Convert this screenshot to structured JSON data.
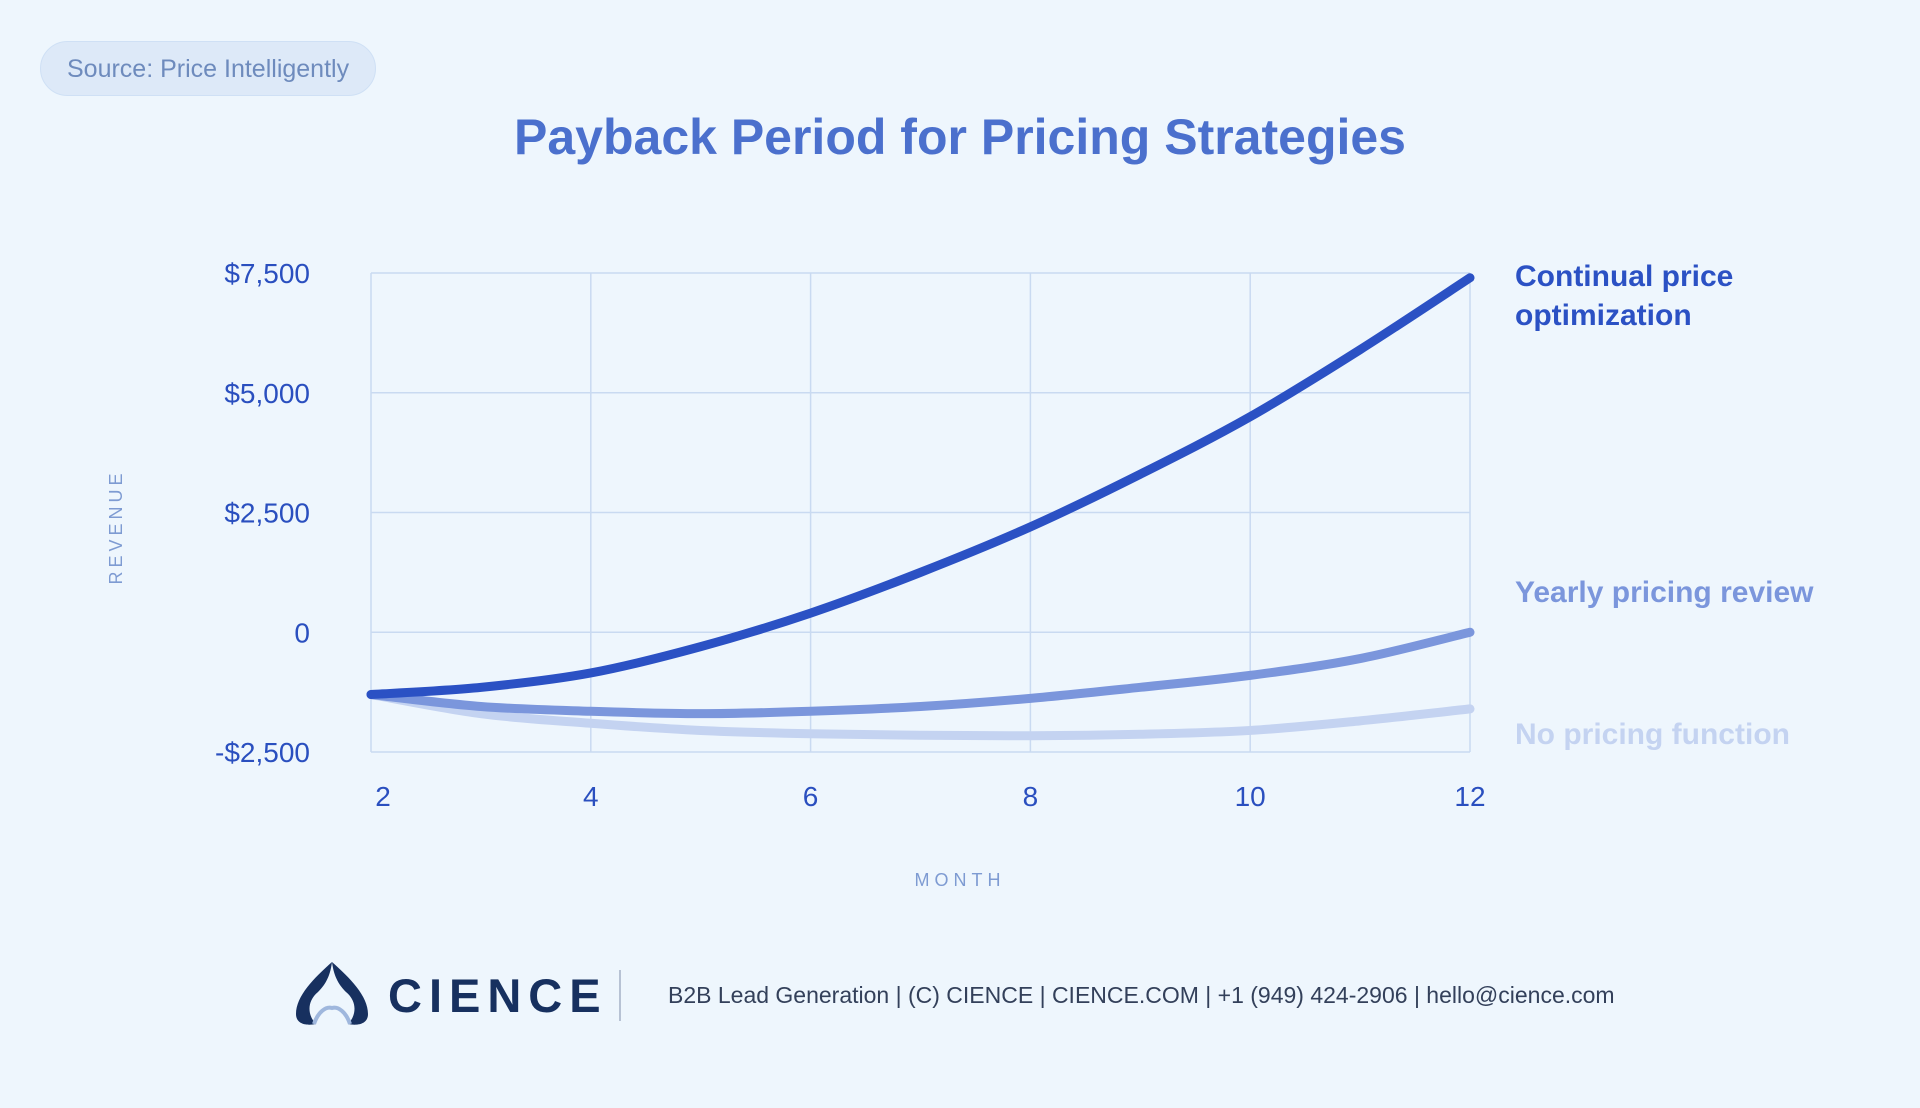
{
  "source_label": "Source: Price Intelligently",
  "footer": {
    "brand": "CIENCE",
    "contact": "B2B Lead Generation | (C) CIENCE | CIENCE.COM | +1 (949) 424-2906 | hello@cience.com",
    "logo_icon": "cience-flame-icon"
  },
  "colors": {
    "background": "#eef6fd",
    "title": "#4b70cd",
    "grid": "#c9daf1",
    "tick": "#2a4fbf",
    "axis_label": "#7e9bd2"
  },
  "chart_data": {
    "type": "line",
    "title": "Payback Period for Pricing Strategies",
    "xlabel": "MONTH",
    "ylabel": "REVENUE",
    "xlim": [
      2,
      12
    ],
    "ylim": [
      -2500,
      7500
    ],
    "x_ticks": [
      2,
      4,
      6,
      8,
      10,
      12
    ],
    "x_tick_labels": [
      "2",
      "4",
      "6",
      "8",
      "10",
      "12"
    ],
    "y_ticks": [
      -2500,
      0,
      2500,
      5000,
      7500
    ],
    "y_tick_labels": [
      "-$2,500",
      "0",
      "$2,500",
      "$5,000",
      "$7,500"
    ],
    "grid": true,
    "legend": "end-of-line labels at right",
    "x": [
      2,
      3,
      4,
      5,
      6,
      7,
      8,
      9,
      10,
      11,
      12
    ],
    "series": [
      {
        "name": "Continual price optimization",
        "color": "#2b51c4",
        "values": [
          -1300,
          -1150,
          -850,
          -300,
          400,
          1250,
          2200,
          3300,
          4500,
          5900,
          7400
        ]
      },
      {
        "name": "Yearly pricing review",
        "color": "#7b96dc",
        "values": [
          -1300,
          -1550,
          -1650,
          -1700,
          -1650,
          -1550,
          -1380,
          -1150,
          -900,
          -550,
          0
        ]
      },
      {
        "name": "No pricing function",
        "color": "#c4d3f1",
        "values": [
          -1300,
          -1700,
          -1900,
          -2050,
          -2120,
          -2150,
          -2160,
          -2130,
          -2050,
          -1850,
          -1600
        ]
      }
    ]
  }
}
